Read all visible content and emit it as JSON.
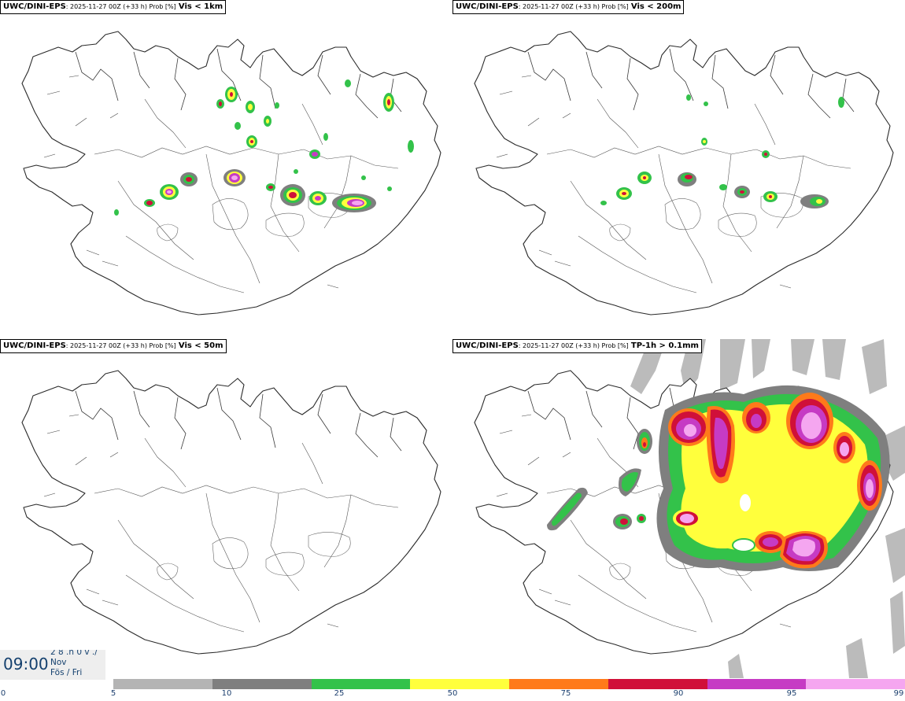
{
  "panels": [
    {
      "model": "UWC/DINI-EPS",
      "meta": ": 2025-11-27 00Z (+33 h) Prob [%]",
      "field": "Vis < 1km"
    },
    {
      "model": "UWC/DINI-EPS",
      "meta": ": 2025-11-27 00Z (+33 h) Prob [%]",
      "field": "Vis < 200m"
    },
    {
      "model": "UWC/DINI-EPS",
      "meta": ": 2025-11-27 00Z (+33 h) Prob [%]",
      "field": "Vis < 50m"
    },
    {
      "model": "UWC/DINI-EPS",
      "meta": ": 2025-11-27 00Z (+33 h) Prob [%]",
      "field": "TP-1h > 0.1mm"
    }
  ],
  "timebox": {
    "time": "09:00",
    "line1": "2 8 .n 0 v ./",
    "line2": "Nov",
    "line3": "Fös / Fri"
  },
  "colorbar": {
    "ticks": [
      "0",
      "5",
      "10",
      "25",
      "50",
      "75",
      "90",
      "95",
      "99"
    ],
    "colors": [
      "#b4b4b4",
      "#7f7f7f",
      "#33c24a",
      "#ffff3c",
      "#ff7a1a",
      "#d01039",
      "#c63bc4",
      "#f5a6f0"
    ]
  }
}
